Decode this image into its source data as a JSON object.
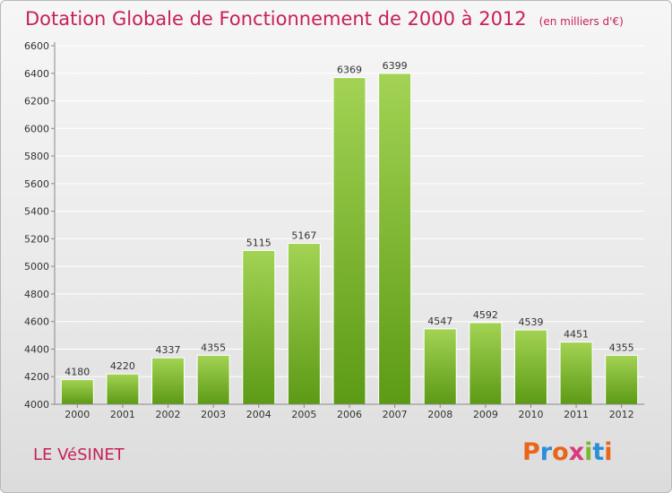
{
  "header": {
    "title": "Dotation Globale de Fonctionnement de 2000 à 2012",
    "unit": "(en milliers d'€)"
  },
  "footer": {
    "commune": "LE VéSINET",
    "logo": "Proxiti",
    "logo_colors": [
      "#e8651b",
      "#2a8ed8",
      "#e8651b",
      "#d93a7c",
      "#7cb82f",
      "#2a8ed8",
      "#e8651b"
    ]
  },
  "colors": {
    "title": "#c8205a",
    "bar_top": "#a3d354",
    "bar_bottom": "#5c9a15"
  },
  "chart_data": {
    "type": "bar",
    "categories": [
      "2000",
      "2001",
      "2002",
      "2003",
      "2004",
      "2005",
      "2006",
      "2007",
      "2008",
      "2009",
      "2010",
      "2011",
      "2012"
    ],
    "values": [
      4180,
      4220,
      4337,
      4355,
      5115,
      5167,
      6369,
      6399,
      4547,
      4592,
      4539,
      4451,
      4355
    ],
    "title": "Dotation Globale de Fonctionnement de 2000 à 2012",
    "ylim": [
      4000,
      6600
    ],
    "yticks": [
      4000,
      4200,
      4400,
      4600,
      4800,
      5000,
      5200,
      5400,
      5600,
      5800,
      6000,
      6200,
      6400,
      6600
    ],
    "grid": true,
    "data_labels": true
  }
}
